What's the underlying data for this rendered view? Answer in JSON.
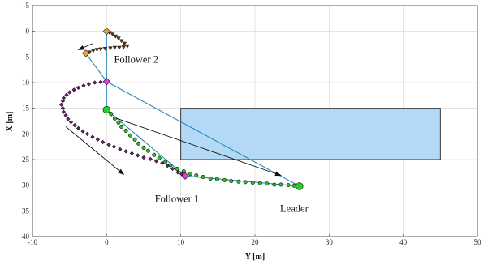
{
  "chart_data": {
    "type": "scatter",
    "title": "",
    "xlabel": "Y [m]",
    "ylabel": "X [m]",
    "xlim": [
      -10,
      50
    ],
    "ylim": [
      -5,
      40
    ],
    "y_axis_reversed": true,
    "grid": true,
    "x_ticks": [
      "-10",
      "0",
      "10",
      "20",
      "30",
      "40",
      "50"
    ],
    "y_ticks": [
      "-5",
      "0",
      "5",
      "10",
      "15",
      "20",
      "25",
      "30",
      "35",
      "40"
    ],
    "obstacle": {
      "y_range": [
        10,
        45
      ],
      "x_range": [
        15,
        25
      ],
      "color": "#b3d9f7"
    },
    "labels": [
      {
        "text": "Follower 2",
        "y": 1.0,
        "x": 6.1
      },
      {
        "text": "Follower 1",
        "y": 6.5,
        "x": 33.3
      },
      {
        "text": "Leader",
        "y": 23.4,
        "x": 35.2
      }
    ],
    "formation_lines": [
      {
        "y": [
          0,
          0,
          -2.8
        ],
        "x": [
          0,
          9.8,
          4.3
        ]
      },
      {
        "y": [
          0,
          26,
          10.6
        ],
        "x": [
          9.8,
          30.2,
          28.2
        ]
      },
      {
        "y": [
          0,
          0,
          10.6
        ],
        "x": [
          9.8,
          15.3,
          28.2
        ]
      }
    ],
    "arrows": [
      {
        "from": [
          -1.9,
          2.4
        ],
        "to": [
          -3.8,
          3.6
        ]
      },
      {
        "from": [
          -5.5,
          18.6
        ],
        "to": [
          2.3,
          27.9
        ]
      },
      {
        "from": [
          0.6,
          16.6
        ],
        "to": [
          23.5,
          28.1
        ]
      }
    ],
    "series": [
      {
        "role": "leader",
        "color": "#22c422",
        "marker": "circle",
        "points": [
          [
            0,
            15.3
          ],
          [
            0.6,
            16.1
          ],
          [
            1.1,
            17.0
          ],
          [
            1.6,
            17.8
          ],
          [
            2.0,
            18.6
          ],
          [
            2.6,
            19.4
          ],
          [
            3.2,
            20.3
          ],
          [
            3.8,
            21.1
          ],
          [
            4.3,
            21.9
          ],
          [
            5.0,
            22.7
          ],
          [
            5.6,
            23.3
          ],
          [
            6.4,
            24.1
          ],
          [
            7.1,
            24.7
          ],
          [
            7.9,
            25.5
          ],
          [
            8.6,
            26.1
          ],
          [
            9.5,
            26.8
          ],
          [
            10.4,
            27.3
          ],
          [
            11.3,
            27.8
          ],
          [
            12.1,
            28.1
          ],
          [
            13.0,
            28.4
          ],
          [
            14.0,
            28.7
          ],
          [
            14.9,
            28.8
          ],
          [
            15.9,
            29.0
          ],
          [
            16.8,
            29.2
          ],
          [
            17.8,
            29.3
          ],
          [
            18.7,
            29.4
          ],
          [
            19.7,
            29.5
          ],
          [
            20.7,
            29.6
          ],
          [
            21.6,
            29.7
          ],
          [
            22.6,
            29.9
          ],
          [
            23.5,
            29.9
          ],
          [
            24.5,
            30.0
          ],
          [
            25.3,
            30.1
          ],
          [
            26.0,
            30.2
          ]
        ],
        "start": [
          0,
          15.3
        ],
        "end": [
          26.0,
          30.2
        ]
      },
      {
        "role": "follower 1",
        "color": "#7a1a7a",
        "marker": "diamond",
        "points": [
          [
            0,
            9.8
          ],
          [
            -0.8,
            9.9
          ],
          [
            -1.6,
            10.0
          ],
          [
            -2.4,
            10.3
          ],
          [
            -3.1,
            10.6
          ],
          [
            -3.8,
            11.0
          ],
          [
            -4.4,
            11.4
          ],
          [
            -5.0,
            11.9
          ],
          [
            -5.4,
            12.4
          ],
          [
            -5.8,
            13.0
          ],
          [
            -5.9,
            13.6
          ],
          [
            -6.1,
            14.3
          ],
          [
            -5.9,
            15.0
          ],
          [
            -5.8,
            15.7
          ],
          [
            -5.5,
            16.4
          ],
          [
            -5.2,
            17.1
          ],
          [
            -4.8,
            17.7
          ],
          [
            -4.3,
            18.3
          ],
          [
            -3.8,
            18.9
          ],
          [
            -3.2,
            19.5
          ],
          [
            -2.6,
            20.0
          ],
          [
            -1.9,
            20.6
          ],
          [
            -1.2,
            21.1
          ],
          [
            -0.5,
            21.6
          ],
          [
            0.3,
            22.1
          ],
          [
            1.0,
            22.5
          ],
          [
            1.8,
            23.0
          ],
          [
            2.6,
            23.4
          ],
          [
            3.4,
            23.8
          ],
          [
            4.2,
            24.2
          ],
          [
            5.0,
            24.6
          ],
          [
            5.9,
            24.9
          ],
          [
            6.7,
            25.3
          ],
          [
            7.5,
            25.7
          ],
          [
            8.2,
            26.2
          ],
          [
            8.9,
            26.8
          ],
          [
            9.6,
            27.5
          ],
          [
            10.1,
            27.8
          ],
          [
            10.6,
            28.2
          ]
        ],
        "start": [
          0,
          9.8
        ],
        "end": [
          10.6,
          28.2
        ]
      },
      {
        "role": "follower 2",
        "color": "#5a3a0a",
        "marker": "triangle",
        "points": [
          [
            0,
            0.0
          ],
          [
            0.4,
            0.3
          ],
          [
            0.8,
            0.6
          ],
          [
            1.2,
            1.0
          ],
          [
            1.6,
            1.4
          ],
          [
            2.0,
            1.9
          ],
          [
            2.4,
            2.4
          ],
          [
            2.8,
            2.9
          ],
          [
            2.3,
            3.1
          ],
          [
            1.7,
            3.2
          ],
          [
            1.1,
            3.2
          ],
          [
            0.5,
            3.3
          ],
          [
            -0.2,
            3.4
          ],
          [
            -0.8,
            3.5
          ],
          [
            -1.3,
            3.6
          ],
          [
            -1.8,
            3.8
          ],
          [
            -2.3,
            4.1
          ],
          [
            -2.8,
            4.3
          ]
        ],
        "start": [
          0,
          0.0
        ],
        "end": [
          -2.8,
          4.3
        ]
      }
    ]
  }
}
